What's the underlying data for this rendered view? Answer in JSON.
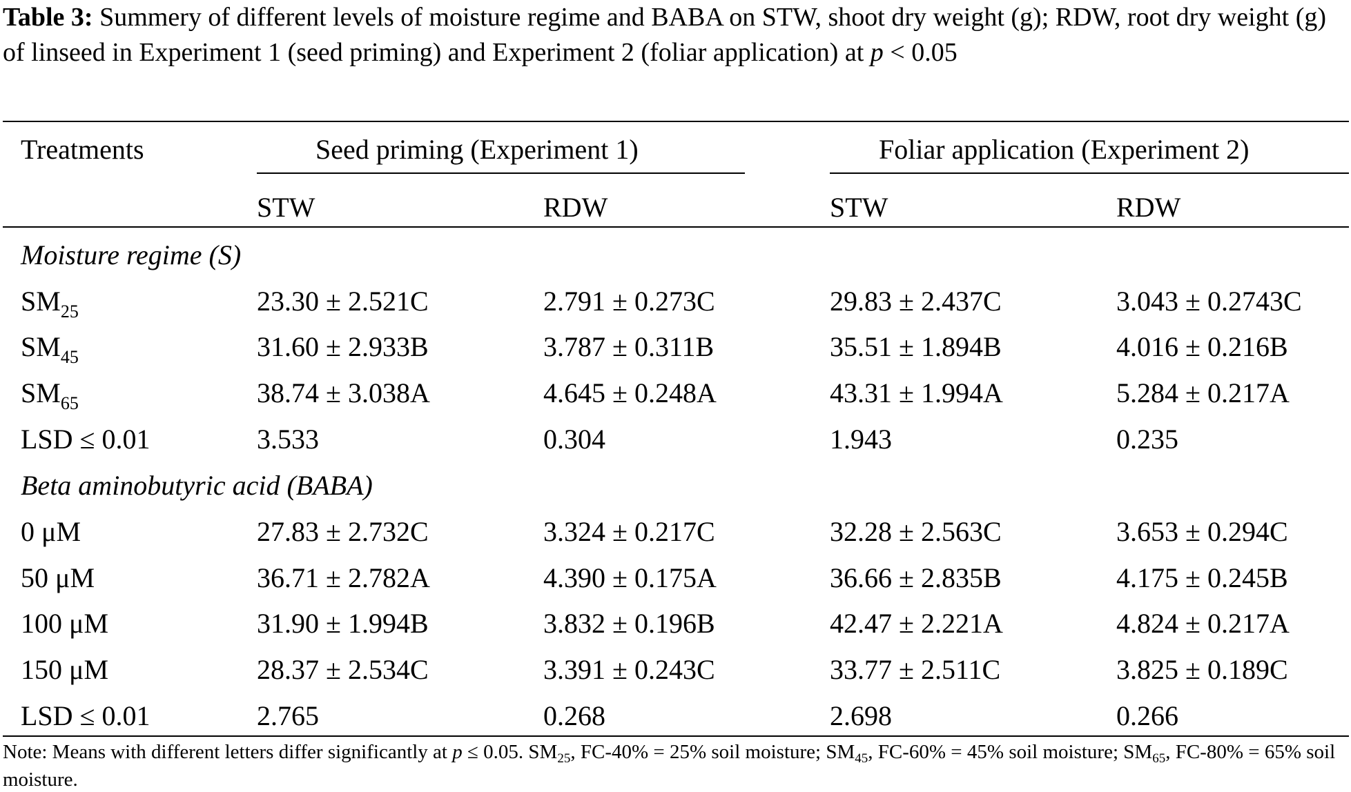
{
  "caption": {
    "label": "Table 3:",
    "text_before_p": "Summery of different levels of moisture regime and BABA on STW, shoot dry weight (g); RDW, root dry weight (g) of linseed in Experiment 1 (seed priming) and Experiment 2 (foliar application) at",
    "p_symbol": "p",
    "text_after_p": "< 0.05"
  },
  "header": {
    "treatments": "Treatments",
    "group1": "Seed priming (Experiment 1)",
    "group2": "Foliar application (Experiment 2)",
    "col_stw": "STW",
    "col_rdw": "RDW"
  },
  "sections": [
    {
      "title": "Moisture regime (S)",
      "rows": [
        {
          "label": "SM",
          "sub": "25",
          "e1_stw": "23.30 ± 2.521C",
          "e1_rdw": "2.791 ± 0.273C",
          "e2_stw": "29.83 ± 2.437C",
          "e2_rdw": "3.043 ± 0.2743C"
        },
        {
          "label": "SM",
          "sub": "45",
          "e1_stw": "31.60 ± 2.933B",
          "e1_rdw": "3.787 ± 0.311B",
          "e2_stw": "35.51 ± 1.894B",
          "e2_rdw": "4.016 ± 0.216B"
        },
        {
          "label": "SM",
          "sub": "65",
          "e1_stw": "38.74 ± 3.038A",
          "e1_rdw": "4.645 ± 0.248A",
          "e2_stw": "43.31 ± 1.994A",
          "e2_rdw": "5.284 ± 0.217A"
        },
        {
          "label": "LSD ≤ 0.01",
          "sub": "",
          "e1_stw": "3.533",
          "e1_rdw": "0.304",
          "e2_stw": "1.943",
          "e2_rdw": "0.235"
        }
      ]
    },
    {
      "title": "Beta aminobutyric acid (BABA)",
      "rows": [
        {
          "label": "0 μM",
          "sub": "",
          "e1_stw": "27.83 ± 2.732C",
          "e1_rdw": "3.324 ± 0.217C",
          "e2_stw": "32.28 ± 2.563C",
          "e2_rdw": "3.653 ± 0.294C"
        },
        {
          "label": "50 μM",
          "sub": "",
          "e1_stw": "36.71 ± 2.782A",
          "e1_rdw": "4.390 ± 0.175A",
          "e2_stw": "36.66 ± 2.835B",
          "e2_rdw": "4.175 ± 0.245B"
        },
        {
          "label": "100 μM",
          "sub": "",
          "e1_stw": "31.90 ± 1.994B",
          "e1_rdw": "3.832 ± 0.196B",
          "e2_stw": "42.47 ± 2.221A",
          "e2_rdw": "4.824 ± 0.217A"
        },
        {
          "label": "150 μM",
          "sub": "",
          "e1_stw": "28.37 ± 2.534C",
          "e1_rdw": "3.391 ± 0.243C",
          "e2_stw": "33.77 ± 2.511C",
          "e2_rdw": "3.825 ± 0.189C"
        },
        {
          "label": "LSD ≤ 0.01",
          "sub": "",
          "e1_stw": "2.765",
          "e1_rdw": "0.268",
          "e2_stw": "2.698",
          "e2_rdw": "0.266"
        }
      ]
    }
  ],
  "note": {
    "prefix": "Note: Means with different letters differ significantly at",
    "p_symbol": "p",
    "p_clause": "≤ 0.05.",
    "sm": "SM",
    "sub25": "25",
    "part25": ", FC-40% = 25% soil moisture;",
    "sub45": "45",
    "part45": ", FC-60% = 45% soil moisture;",
    "sub65": "65",
    "part65": ", FC-80% = 65% soil moisture."
  }
}
